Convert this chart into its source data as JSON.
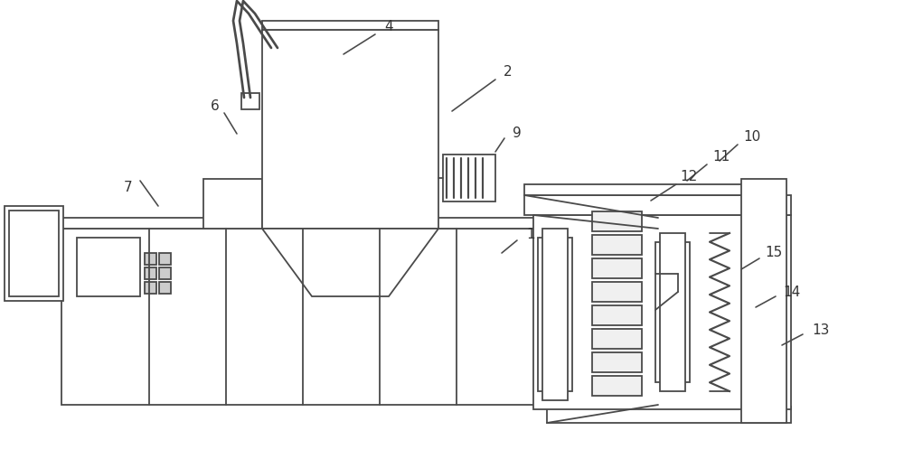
{
  "bg_color": "#ffffff",
  "line_color": "#4a4a4a",
  "lw": 1.3,
  "fig_width": 10.0,
  "fig_height": 5.08,
  "label_fontsize": 11,
  "label_color": "#333333"
}
